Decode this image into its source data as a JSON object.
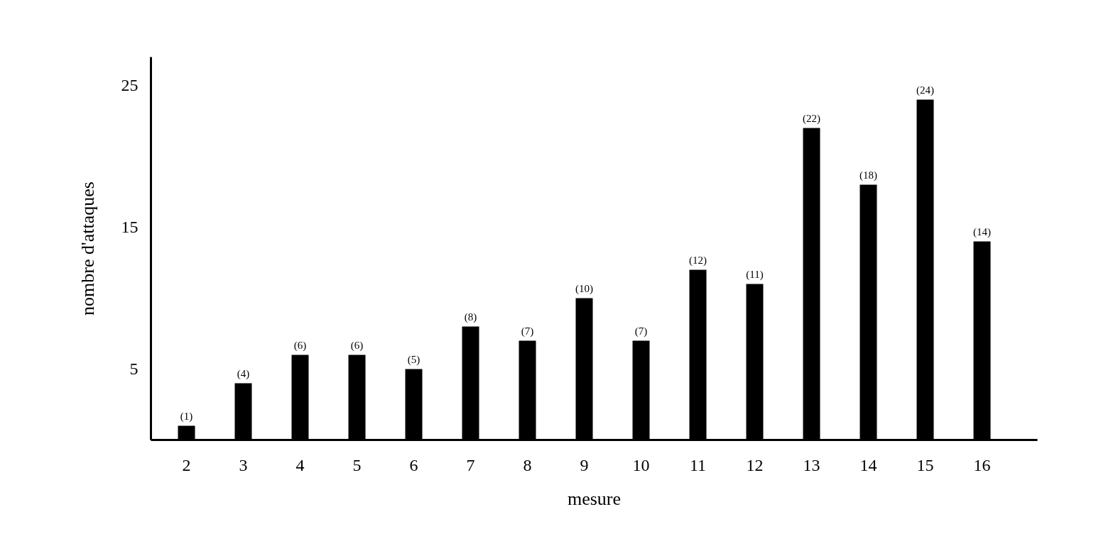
{
  "chart_data": {
    "type": "bar",
    "xlabel": "mesure",
    "ylabel": "nombre d'attaques",
    "categories": [
      "2",
      "3",
      "4",
      "5",
      "6",
      "7",
      "8",
      "9",
      "10",
      "11",
      "12",
      "13",
      "14",
      "15",
      "16"
    ],
    "values": [
      1,
      4,
      6,
      6,
      5,
      8,
      7,
      10,
      7,
      12,
      11,
      22,
      18,
      24,
      14
    ],
    "value_labels": [
      "(1)",
      "(4)",
      "(6)",
      "(6)",
      "(5)",
      "(8)",
      "(7)",
      "(10)",
      "(7)",
      "(12)",
      "(11)",
      "(22)",
      "(18)",
      "(24)",
      "(14)"
    ],
    "color": "#000000",
    "ylim": [
      0,
      27
    ],
    "yticks": [
      5,
      15,
      25
    ],
    "grid": false
  }
}
